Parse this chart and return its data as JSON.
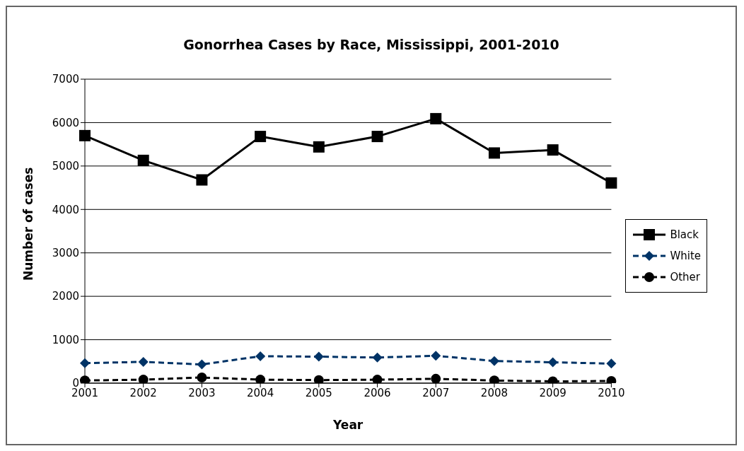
{
  "chart_data": {
    "type": "line",
    "title": "Gonorrhea Cases by Race, Mississippi, 2001-2010",
    "xlabel": "Year",
    "ylabel": "Number of cases",
    "categories": [
      "2001",
      "2002",
      "2003",
      "2004",
      "2005",
      "2006",
      "2007",
      "2008",
      "2009",
      "2010"
    ],
    "series": [
      {
        "name": "Black",
        "color": "#000000",
        "marker": "square",
        "line_style": "solid",
        "values": [
          5700,
          5130,
          4680,
          5680,
          5440,
          5680,
          6090,
          5300,
          5370,
          4610
        ]
      },
      {
        "name": "White",
        "color": "#003366",
        "marker": "diamond",
        "line_style": "dashed",
        "values": [
          460,
          490,
          430,
          620,
          610,
          590,
          630,
          510,
          480,
          450
        ]
      },
      {
        "name": "Other",
        "color": "#000000",
        "marker": "circle",
        "line_style": "dashed",
        "values": [
          60,
          80,
          130,
          80,
          70,
          80,
          100,
          60,
          40,
          50
        ]
      }
    ],
    "ylim": [
      0,
      7000
    ],
    "yticks": [
      0,
      1000,
      2000,
      3000,
      4000,
      5000,
      6000,
      7000
    ],
    "grid": "y",
    "legend": "right"
  }
}
